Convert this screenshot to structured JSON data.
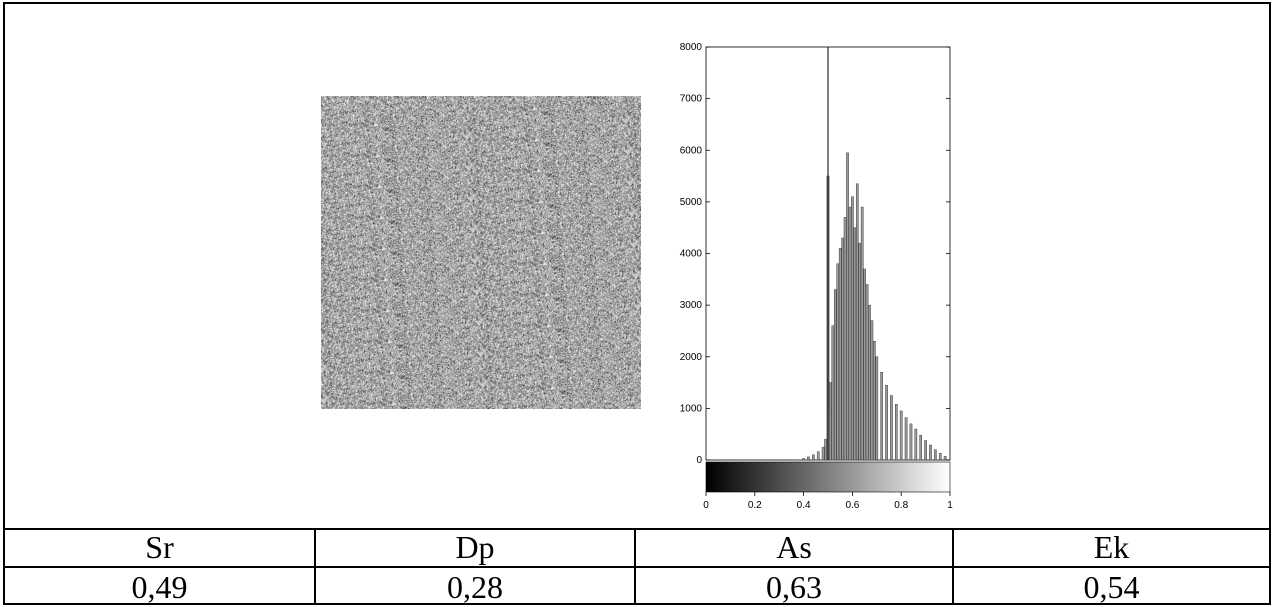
{
  "figure": {
    "texture_image": "grayscale-noise-texture"
  },
  "chart_data": {
    "type": "bar",
    "title": "",
    "xlabel": "",
    "ylabel": "",
    "xlim": [
      0,
      1
    ],
    "ylim": [
      0,
      8000
    ],
    "x_ticks": [
      "0",
      "0.2",
      "0.4",
      "0.6",
      "0.8",
      "1"
    ],
    "y_ticks": [
      "0",
      "1000",
      "2000",
      "3000",
      "4000",
      "5000",
      "6000",
      "7000",
      "8000"
    ],
    "colorbar": "black-to-white gradient",
    "marker_line_x": 0.5,
    "bins": [
      {
        "x": 0.4,
        "y": 30
      },
      {
        "x": 0.42,
        "y": 60
      },
      {
        "x": 0.44,
        "y": 100
      },
      {
        "x": 0.46,
        "y": 160
      },
      {
        "x": 0.48,
        "y": 250
      },
      {
        "x": 0.49,
        "y": 400
      },
      {
        "x": 0.5,
        "y": 5500
      },
      {
        "x": 0.505,
        "y": 1000
      },
      {
        "x": 0.51,
        "y": 1500
      },
      {
        "x": 0.52,
        "y": 2600
      },
      {
        "x": 0.53,
        "y": 3300
      },
      {
        "x": 0.54,
        "y": 3800
      },
      {
        "x": 0.55,
        "y": 4100
      },
      {
        "x": 0.56,
        "y": 4300
      },
      {
        "x": 0.57,
        "y": 4700
      },
      {
        "x": 0.58,
        "y": 5950
      },
      {
        "x": 0.59,
        "y": 4900
      },
      {
        "x": 0.6,
        "y": 5100
      },
      {
        "x": 0.61,
        "y": 4500
      },
      {
        "x": 0.62,
        "y": 5350
      },
      {
        "x": 0.63,
        "y": 4200
      },
      {
        "x": 0.64,
        "y": 4900
      },
      {
        "x": 0.65,
        "y": 3700
      },
      {
        "x": 0.66,
        "y": 3400
      },
      {
        "x": 0.67,
        "y": 3000
      },
      {
        "x": 0.68,
        "y": 2700
      },
      {
        "x": 0.69,
        "y": 2300
      },
      {
        "x": 0.7,
        "y": 2000
      },
      {
        "x": 0.72,
        "y": 1700
      },
      {
        "x": 0.74,
        "y": 1450
      },
      {
        "x": 0.76,
        "y": 1250
      },
      {
        "x": 0.78,
        "y": 1080
      },
      {
        "x": 0.8,
        "y": 950
      },
      {
        "x": 0.82,
        "y": 820
      },
      {
        "x": 0.84,
        "y": 700
      },
      {
        "x": 0.86,
        "y": 600
      },
      {
        "x": 0.88,
        "y": 480
      },
      {
        "x": 0.9,
        "y": 380
      },
      {
        "x": 0.92,
        "y": 290
      },
      {
        "x": 0.94,
        "y": 200
      },
      {
        "x": 0.96,
        "y": 130
      },
      {
        "x": 0.98,
        "y": 70
      }
    ],
    "grid": false
  },
  "stats": {
    "headers": [
      "Sr",
      "Dp",
      "As",
      "Ek"
    ],
    "values": [
      "0,49",
      "0,28",
      "0,63",
      "0,54"
    ]
  }
}
